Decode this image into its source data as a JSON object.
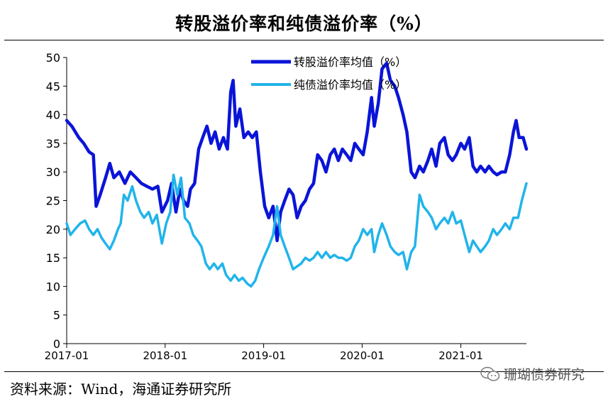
{
  "title": "转股溢价率和纯债溢价率（%）",
  "source": "资料来源：Wind，海通证券研究所",
  "watermark": "珊瑚债券研究",
  "watermark_icon": "wechat-icon",
  "chart_data": {
    "type": "line",
    "title": "转股溢价率和纯债溢价率（%）",
    "xlabel": "",
    "ylabel": "",
    "ylim": [
      0,
      50
    ],
    "yticks": [
      0,
      5,
      10,
      15,
      20,
      25,
      30,
      35,
      40,
      45,
      50
    ],
    "xlim": [
      "2017-01",
      "2021-09"
    ],
    "xticks": [
      "2017-01",
      "2018-01",
      "2019-01",
      "2020-01",
      "2021-01"
    ],
    "legend_position": "top-right",
    "grid": false,
    "series": [
      {
        "name": "转股溢价率均值（%）",
        "color": "#0a14d8",
        "points": [
          [
            "2017-01-01",
            39
          ],
          [
            "2017-01-20",
            38
          ],
          [
            "2017-02-15",
            36
          ],
          [
            "2017-03-05",
            35
          ],
          [
            "2017-03-25",
            33.5
          ],
          [
            "2017-04-10",
            33
          ],
          [
            "2017-04-20",
            24
          ],
          [
            "2017-05-05",
            26
          ],
          [
            "2017-05-25",
            29
          ],
          [
            "2017-06-10",
            31.5
          ],
          [
            "2017-06-25",
            29
          ],
          [
            "2017-07-15",
            30
          ],
          [
            "2017-08-05",
            28
          ],
          [
            "2017-08-25",
            30
          ],
          [
            "2017-09-15",
            29
          ],
          [
            "2017-10-05",
            28
          ],
          [
            "2017-10-25",
            27.5
          ],
          [
            "2017-11-15",
            27
          ],
          [
            "2017-12-05",
            27.5
          ],
          [
            "2017-12-20",
            23
          ],
          [
            "2018-01-10",
            25
          ],
          [
            "2018-01-25",
            28
          ],
          [
            "2018-02-10",
            23
          ],
          [
            "2018-02-25",
            27
          ],
          [
            "2018-03-10",
            25
          ],
          [
            "2018-03-25",
            24
          ],
          [
            "2018-04-05",
            27
          ],
          [
            "2018-04-20",
            28
          ],
          [
            "2018-05-05",
            34
          ],
          [
            "2018-05-20",
            36
          ],
          [
            "2018-06-05",
            38
          ],
          [
            "2018-06-20",
            35
          ],
          [
            "2018-07-05",
            37
          ],
          [
            "2018-07-20",
            34
          ],
          [
            "2018-08-05",
            36
          ],
          [
            "2018-08-20",
            34
          ],
          [
            "2018-09-01",
            44
          ],
          [
            "2018-09-10",
            46
          ],
          [
            "2018-09-20",
            38
          ],
          [
            "2018-10-05",
            41
          ],
          [
            "2018-10-20",
            36
          ],
          [
            "2018-11-05",
            37
          ],
          [
            "2018-11-20",
            36
          ],
          [
            "2018-12-05",
            37
          ],
          [
            "2018-12-20",
            30
          ],
          [
            "2019-01-05",
            24
          ],
          [
            "2019-01-20",
            22
          ],
          [
            "2019-02-05",
            24
          ],
          [
            "2019-02-20",
            18
          ],
          [
            "2019-03-05",
            23
          ],
          [
            "2019-03-20",
            25
          ],
          [
            "2019-04-05",
            27
          ],
          [
            "2019-04-20",
            26
          ],
          [
            "2019-05-05",
            22
          ],
          [
            "2019-05-20",
            24
          ],
          [
            "2019-06-05",
            25
          ],
          [
            "2019-06-20",
            27
          ],
          [
            "2019-07-05",
            28
          ],
          [
            "2019-07-20",
            33
          ],
          [
            "2019-08-05",
            32
          ],
          [
            "2019-08-20",
            30
          ],
          [
            "2019-09-05",
            33
          ],
          [
            "2019-09-20",
            34
          ],
          [
            "2019-10-05",
            32
          ],
          [
            "2019-10-20",
            34
          ],
          [
            "2019-11-05",
            33
          ],
          [
            "2019-11-20",
            32
          ],
          [
            "2019-12-05",
            35
          ],
          [
            "2019-12-20",
            34
          ],
          [
            "2020-01-05",
            33
          ],
          [
            "2020-01-20",
            37
          ],
          [
            "2020-02-05",
            43
          ],
          [
            "2020-02-15",
            38
          ],
          [
            "2020-03-01",
            42
          ],
          [
            "2020-03-15",
            48
          ],
          [
            "2020-04-01",
            49
          ],
          [
            "2020-04-15",
            46
          ],
          [
            "2020-05-01",
            45
          ],
          [
            "2020-05-15",
            43
          ],
          [
            "2020-06-01",
            40
          ],
          [
            "2020-06-15",
            37
          ],
          [
            "2020-07-01",
            30
          ],
          [
            "2020-07-15",
            29
          ],
          [
            "2020-08-01",
            31
          ],
          [
            "2020-08-15",
            30
          ],
          [
            "2020-09-01",
            32
          ],
          [
            "2020-09-15",
            34
          ],
          [
            "2020-10-01",
            31
          ],
          [
            "2020-10-15",
            35
          ],
          [
            "2020-11-01",
            36
          ],
          [
            "2020-11-15",
            33
          ],
          [
            "2020-12-01",
            32
          ],
          [
            "2020-12-15",
            33
          ],
          [
            "2021-01-01",
            35
          ],
          [
            "2021-01-15",
            34
          ],
          [
            "2021-02-01",
            36
          ],
          [
            "2021-02-15",
            31
          ],
          [
            "2021-03-01",
            30
          ],
          [
            "2021-03-15",
            31
          ],
          [
            "2021-04-01",
            30
          ],
          [
            "2021-04-15",
            31
          ],
          [
            "2021-05-01",
            30
          ],
          [
            "2021-05-15",
            29.5
          ],
          [
            "2021-06-01",
            30
          ],
          [
            "2021-06-15",
            30
          ],
          [
            "2021-07-01",
            33
          ],
          [
            "2021-07-15",
            37
          ],
          [
            "2021-07-25",
            39
          ],
          [
            "2021-08-05",
            36
          ],
          [
            "2021-08-20",
            36
          ],
          [
            "2021-09-01",
            34
          ]
        ]
      },
      {
        "name": "纯债溢价率均值（%）",
        "color": "#21b4ea",
        "points": [
          [
            "2017-01-01",
            21
          ],
          [
            "2017-01-15",
            19
          ],
          [
            "2017-02-01",
            20
          ],
          [
            "2017-02-20",
            21
          ],
          [
            "2017-03-10",
            21.5
          ],
          [
            "2017-03-25",
            20
          ],
          [
            "2017-04-10",
            19
          ],
          [
            "2017-04-25",
            20
          ],
          [
            "2017-05-10",
            18.5
          ],
          [
            "2017-05-25",
            17.5
          ],
          [
            "2017-06-10",
            16.5
          ],
          [
            "2017-06-25",
            18
          ],
          [
            "2017-07-10",
            20
          ],
          [
            "2017-07-20",
            21
          ],
          [
            "2017-08-01",
            26
          ],
          [
            "2017-08-15",
            25
          ],
          [
            "2017-09-01",
            27.5
          ],
          [
            "2017-09-15",
            25
          ],
          [
            "2017-10-01",
            23
          ],
          [
            "2017-10-15",
            22
          ],
          [
            "2017-11-01",
            23
          ],
          [
            "2017-11-15",
            21
          ],
          [
            "2017-12-01",
            22.5
          ],
          [
            "2017-12-20",
            17.5
          ],
          [
            "2018-01-05",
            21
          ],
          [
            "2018-01-20",
            23
          ],
          [
            "2018-02-01",
            29.5
          ],
          [
            "2018-02-15",
            26
          ],
          [
            "2018-03-01",
            29
          ],
          [
            "2018-03-15",
            22
          ],
          [
            "2018-04-01",
            21
          ],
          [
            "2018-04-15",
            19
          ],
          [
            "2018-05-01",
            18
          ],
          [
            "2018-05-15",
            17
          ],
          [
            "2018-06-01",
            14
          ],
          [
            "2018-06-15",
            13
          ],
          [
            "2018-07-01",
            14
          ],
          [
            "2018-07-15",
            13
          ],
          [
            "2018-08-01",
            14
          ],
          [
            "2018-08-15",
            12
          ],
          [
            "2018-09-01",
            11
          ],
          [
            "2018-09-15",
            12
          ],
          [
            "2018-10-01",
            11
          ],
          [
            "2018-10-15",
            11.5
          ],
          [
            "2018-11-01",
            10.5
          ],
          [
            "2018-11-15",
            10
          ],
          [
            "2018-12-01",
            11
          ],
          [
            "2018-12-15",
            13
          ],
          [
            "2019-01-01",
            15
          ],
          [
            "2019-01-20",
            17
          ],
          [
            "2019-02-05",
            19
          ],
          [
            "2019-02-20",
            24
          ],
          [
            "2019-03-05",
            19
          ],
          [
            "2019-03-20",
            17
          ],
          [
            "2019-04-05",
            15
          ],
          [
            "2019-04-20",
            13
          ],
          [
            "2019-05-05",
            13.5
          ],
          [
            "2019-05-20",
            14
          ],
          [
            "2019-06-05",
            15
          ],
          [
            "2019-06-20",
            14.5
          ],
          [
            "2019-07-05",
            15
          ],
          [
            "2019-07-20",
            16
          ],
          [
            "2019-08-05",
            15
          ],
          [
            "2019-08-20",
            16
          ],
          [
            "2019-09-05",
            15
          ],
          [
            "2019-09-20",
            15.5
          ],
          [
            "2019-10-05",
            15
          ],
          [
            "2019-10-20",
            15
          ],
          [
            "2019-11-05",
            14.5
          ],
          [
            "2019-11-20",
            15
          ],
          [
            "2019-12-05",
            17
          ],
          [
            "2019-12-20",
            18
          ],
          [
            "2020-01-05",
            20
          ],
          [
            "2020-01-20",
            19
          ],
          [
            "2020-02-05",
            20
          ],
          [
            "2020-02-15",
            16
          ],
          [
            "2020-03-01",
            19
          ],
          [
            "2020-03-15",
            21
          ],
          [
            "2020-04-01",
            19
          ],
          [
            "2020-04-15",
            17
          ],
          [
            "2020-05-01",
            16
          ],
          [
            "2020-05-15",
            15.5
          ],
          [
            "2020-06-01",
            16
          ],
          [
            "2020-06-15",
            13
          ],
          [
            "2020-07-01",
            16
          ],
          [
            "2020-07-15",
            17
          ],
          [
            "2020-08-01",
            26
          ],
          [
            "2020-08-15",
            24
          ],
          [
            "2020-09-01",
            23
          ],
          [
            "2020-09-15",
            22
          ],
          [
            "2020-10-01",
            20
          ],
          [
            "2020-10-15",
            21
          ],
          [
            "2020-11-01",
            22
          ],
          [
            "2020-11-15",
            21
          ],
          [
            "2020-12-01",
            23
          ],
          [
            "2020-12-15",
            21
          ],
          [
            "2021-01-01",
            21.5
          ],
          [
            "2021-01-15",
            19
          ],
          [
            "2021-02-01",
            16
          ],
          [
            "2021-02-15",
            18
          ],
          [
            "2021-03-01",
            17
          ],
          [
            "2021-03-15",
            16
          ],
          [
            "2021-04-01",
            17
          ],
          [
            "2021-04-15",
            18
          ],
          [
            "2021-05-01",
            20
          ],
          [
            "2021-05-15",
            19
          ],
          [
            "2021-06-01",
            20
          ],
          [
            "2021-06-15",
            21
          ],
          [
            "2021-07-01",
            20
          ],
          [
            "2021-07-15",
            22
          ],
          [
            "2021-08-01",
            22
          ],
          [
            "2021-08-15",
            25
          ],
          [
            "2021-09-01",
            28
          ]
        ]
      }
    ]
  }
}
